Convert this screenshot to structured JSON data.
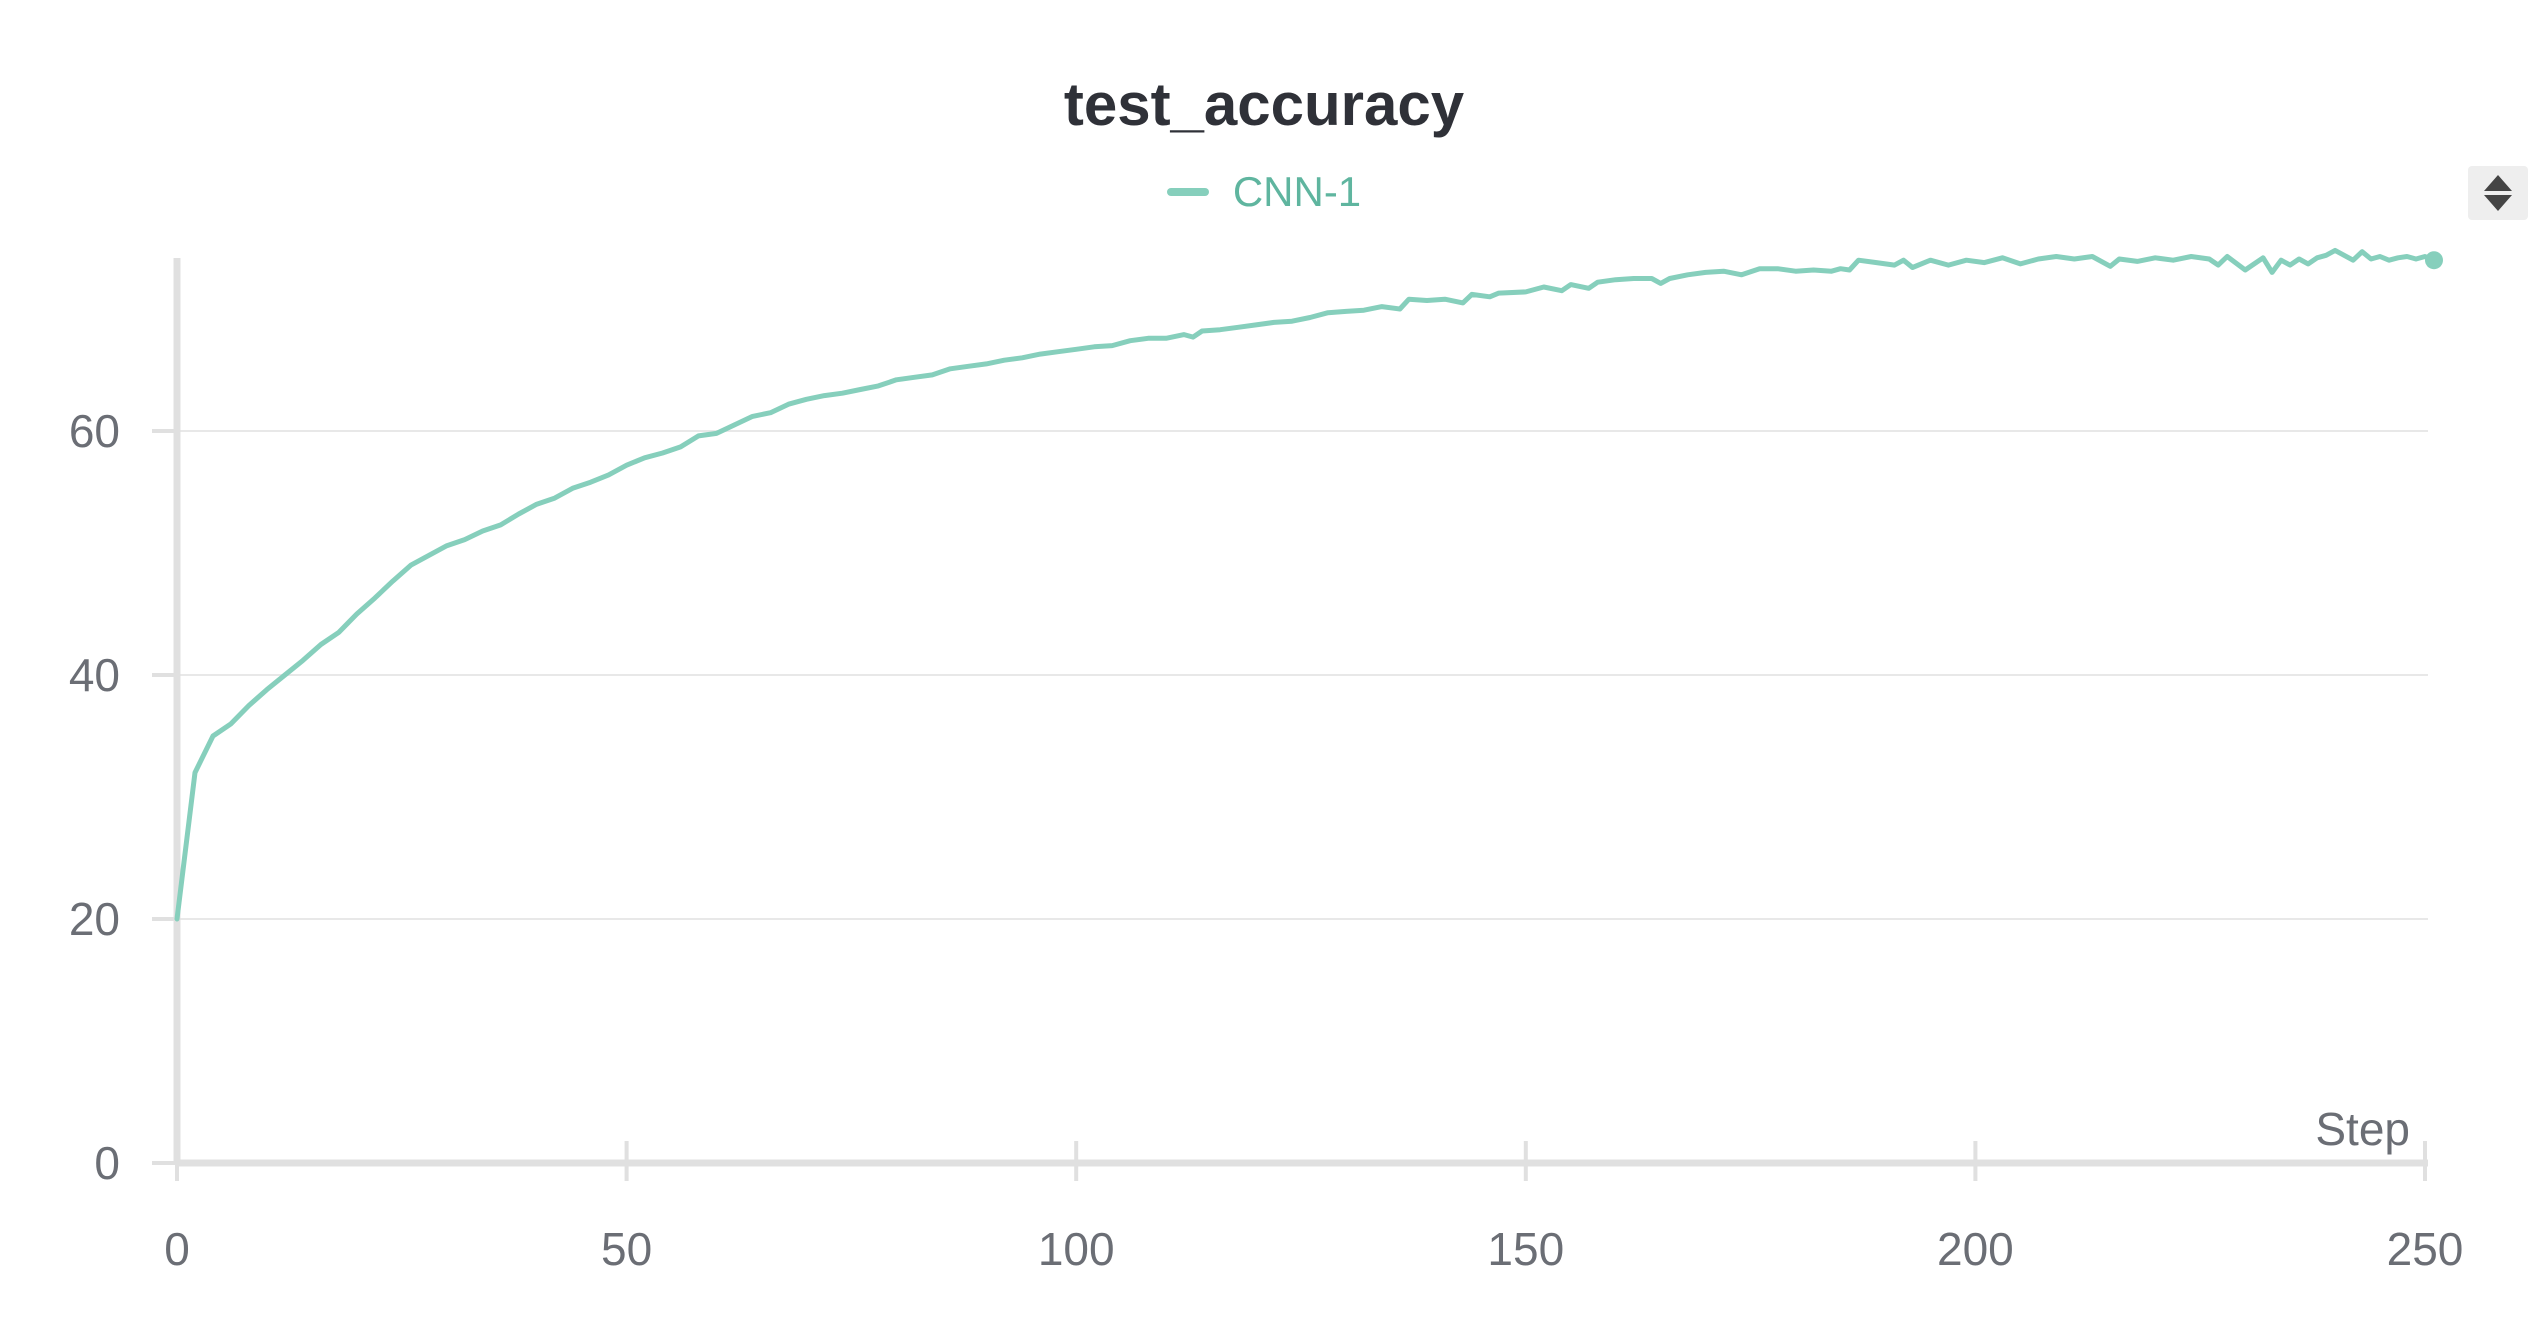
{
  "chart_data": {
    "type": "line",
    "title": "test_accuracy",
    "xlabel": "Step",
    "ylabel": "",
    "xlim": [
      0,
      250
    ],
    "ylim": [
      0,
      74
    ],
    "x_ticks": [
      0,
      50,
      100,
      150,
      200,
      250
    ],
    "y_ticks": [
      0,
      20,
      40,
      60
    ],
    "grid": true,
    "legend_position": "top-center",
    "series": [
      {
        "name": "CNN-1",
        "color": "#86cfbc",
        "points": [
          [
            0,
            20
          ],
          [
            2,
            32
          ],
          [
            4,
            35
          ],
          [
            6,
            36
          ],
          [
            8,
            37.5
          ],
          [
            10,
            38.8
          ],
          [
            12,
            40
          ],
          [
            14,
            41.2
          ],
          [
            16,
            42.5
          ],
          [
            18,
            43.5
          ],
          [
            20,
            45
          ],
          [
            22,
            46.3
          ],
          [
            24,
            47.7
          ],
          [
            26,
            49
          ],
          [
            28,
            49.8
          ],
          [
            30,
            50.6
          ],
          [
            32,
            51.1
          ],
          [
            34,
            51.8
          ],
          [
            36,
            52.3
          ],
          [
            38,
            53.2
          ],
          [
            40,
            54
          ],
          [
            42,
            54.5
          ],
          [
            44,
            55.3
          ],
          [
            46,
            55.8
          ],
          [
            48,
            56.4
          ],
          [
            50,
            57.2
          ],
          [
            52,
            57.8
          ],
          [
            54,
            58.2
          ],
          [
            56,
            58.7
          ],
          [
            58,
            59.6
          ],
          [
            60,
            59.8
          ],
          [
            62,
            60.5
          ],
          [
            64,
            61.2
          ],
          [
            66,
            61.5
          ],
          [
            68,
            62.2
          ],
          [
            70,
            62.6
          ],
          [
            72,
            62.9
          ],
          [
            74,
            63.1
          ],
          [
            76,
            63.4
          ],
          [
            78,
            63.7
          ],
          [
            80,
            64.2
          ],
          [
            82,
            64.4
          ],
          [
            84,
            64.6
          ],
          [
            86,
            65.1
          ],
          [
            88,
            65.3
          ],
          [
            90,
            65.5
          ],
          [
            92,
            65.8
          ],
          [
            94,
            66
          ],
          [
            96,
            66.3
          ],
          [
            98,
            66.5
          ],
          [
            100,
            66.7
          ],
          [
            102,
            66.9
          ],
          [
            104,
            67
          ],
          [
            106,
            67.4
          ],
          [
            108,
            67.6
          ],
          [
            110,
            67.6
          ],
          [
            112,
            67.9
          ],
          [
            113,
            67.7
          ],
          [
            114,
            68.2
          ],
          [
            116,
            68.3
          ],
          [
            118,
            68.5
          ],
          [
            120,
            68.7
          ],
          [
            122,
            68.9
          ],
          [
            124,
            69
          ],
          [
            126,
            69.3
          ],
          [
            128,
            69.7
          ],
          [
            130,
            69.8
          ],
          [
            132,
            69.9
          ],
          [
            134,
            70.2
          ],
          [
            136,
            70
          ],
          [
            137,
            70.8
          ],
          [
            139,
            70.7
          ],
          [
            141,
            70.8
          ],
          [
            143,
            70.5
          ],
          [
            144,
            71.2
          ],
          [
            146,
            71
          ],
          [
            147,
            71.3
          ],
          [
            150,
            71.4
          ],
          [
            152,
            71.8
          ],
          [
            154,
            71.5
          ],
          [
            155,
            72
          ],
          [
            157,
            71.7
          ],
          [
            158,
            72.2
          ],
          [
            160,
            72.4
          ],
          [
            162,
            72.5
          ],
          [
            164,
            72.5
          ],
          [
            165,
            72.1
          ],
          [
            166,
            72.5
          ],
          [
            168,
            72.8
          ],
          [
            170,
            73
          ],
          [
            172,
            73.1
          ],
          [
            174,
            72.8
          ],
          [
            176,
            73.3
          ],
          [
            178,
            73.3
          ],
          [
            180,
            73.1
          ],
          [
            182,
            73.2
          ],
          [
            184,
            73.1
          ],
          [
            185,
            73.3
          ],
          [
            186,
            73.2
          ],
          [
            187,
            74
          ],
          [
            189,
            73.8
          ],
          [
            191,
            73.6
          ],
          [
            192,
            74
          ],
          [
            193,
            73.4
          ],
          [
            195,
            74
          ],
          [
            197,
            73.6
          ],
          [
            199,
            74
          ],
          [
            201,
            73.8
          ],
          [
            203,
            74.2
          ],
          [
            205,
            73.7
          ],
          [
            207,
            74.1
          ],
          [
            209,
            74.3
          ],
          [
            211,
            74.1
          ],
          [
            213,
            74.3
          ],
          [
            215,
            73.5
          ],
          [
            216,
            74.1
          ],
          [
            218,
            73.9
          ],
          [
            220,
            74.2
          ],
          [
            222,
            74
          ],
          [
            224,
            74.3
          ],
          [
            226,
            74.1
          ],
          [
            227,
            73.6
          ],
          [
            228,
            74.3
          ],
          [
            230,
            73.2
          ],
          [
            232,
            74.2
          ],
          [
            233,
            73
          ],
          [
            234,
            74
          ],
          [
            235,
            73.6
          ],
          [
            236,
            74.1
          ],
          [
            237,
            73.7
          ],
          [
            238,
            74.2
          ],
          [
            239,
            74.4
          ],
          [
            240,
            74.8
          ],
          [
            241,
            74.4
          ],
          [
            242,
            74
          ],
          [
            243,
            74.7
          ],
          [
            244,
            74.1
          ],
          [
            245,
            74.3
          ],
          [
            246,
            74
          ],
          [
            247,
            74.2
          ],
          [
            248,
            74.3
          ],
          [
            249,
            74.1
          ],
          [
            250,
            74.3
          ],
          [
            251,
            74
          ]
        ]
      }
    ]
  },
  "ui": {
    "scroll_control_icon": "up-down-arrows-icon",
    "grid_color": "#e8e8e8",
    "axis_color": "#e0e0e0"
  }
}
